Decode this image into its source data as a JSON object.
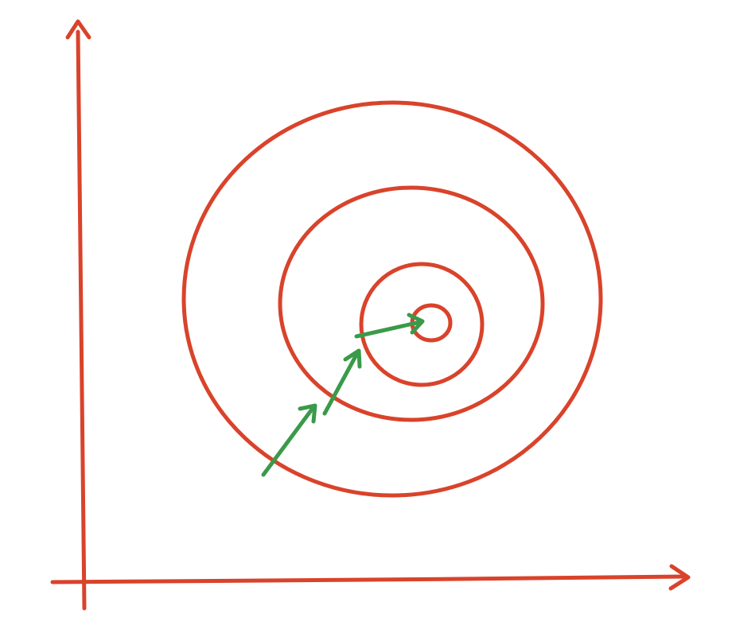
{
  "diagram": {
    "kind": "contour-plot-with-gradient-steps",
    "axes": {
      "x_axis": {
        "arrow": true
      },
      "y_axis": {
        "arrow": true
      }
    },
    "contours": {
      "count": 4,
      "style": "concentric-ellipses"
    },
    "steps": {
      "count": 3,
      "direction": "toward-center"
    },
    "colors": {
      "axis": "#d9432b",
      "contour": "#d9432b",
      "step_arrow": "#3a9a4a",
      "background": "#ffffff"
    }
  }
}
